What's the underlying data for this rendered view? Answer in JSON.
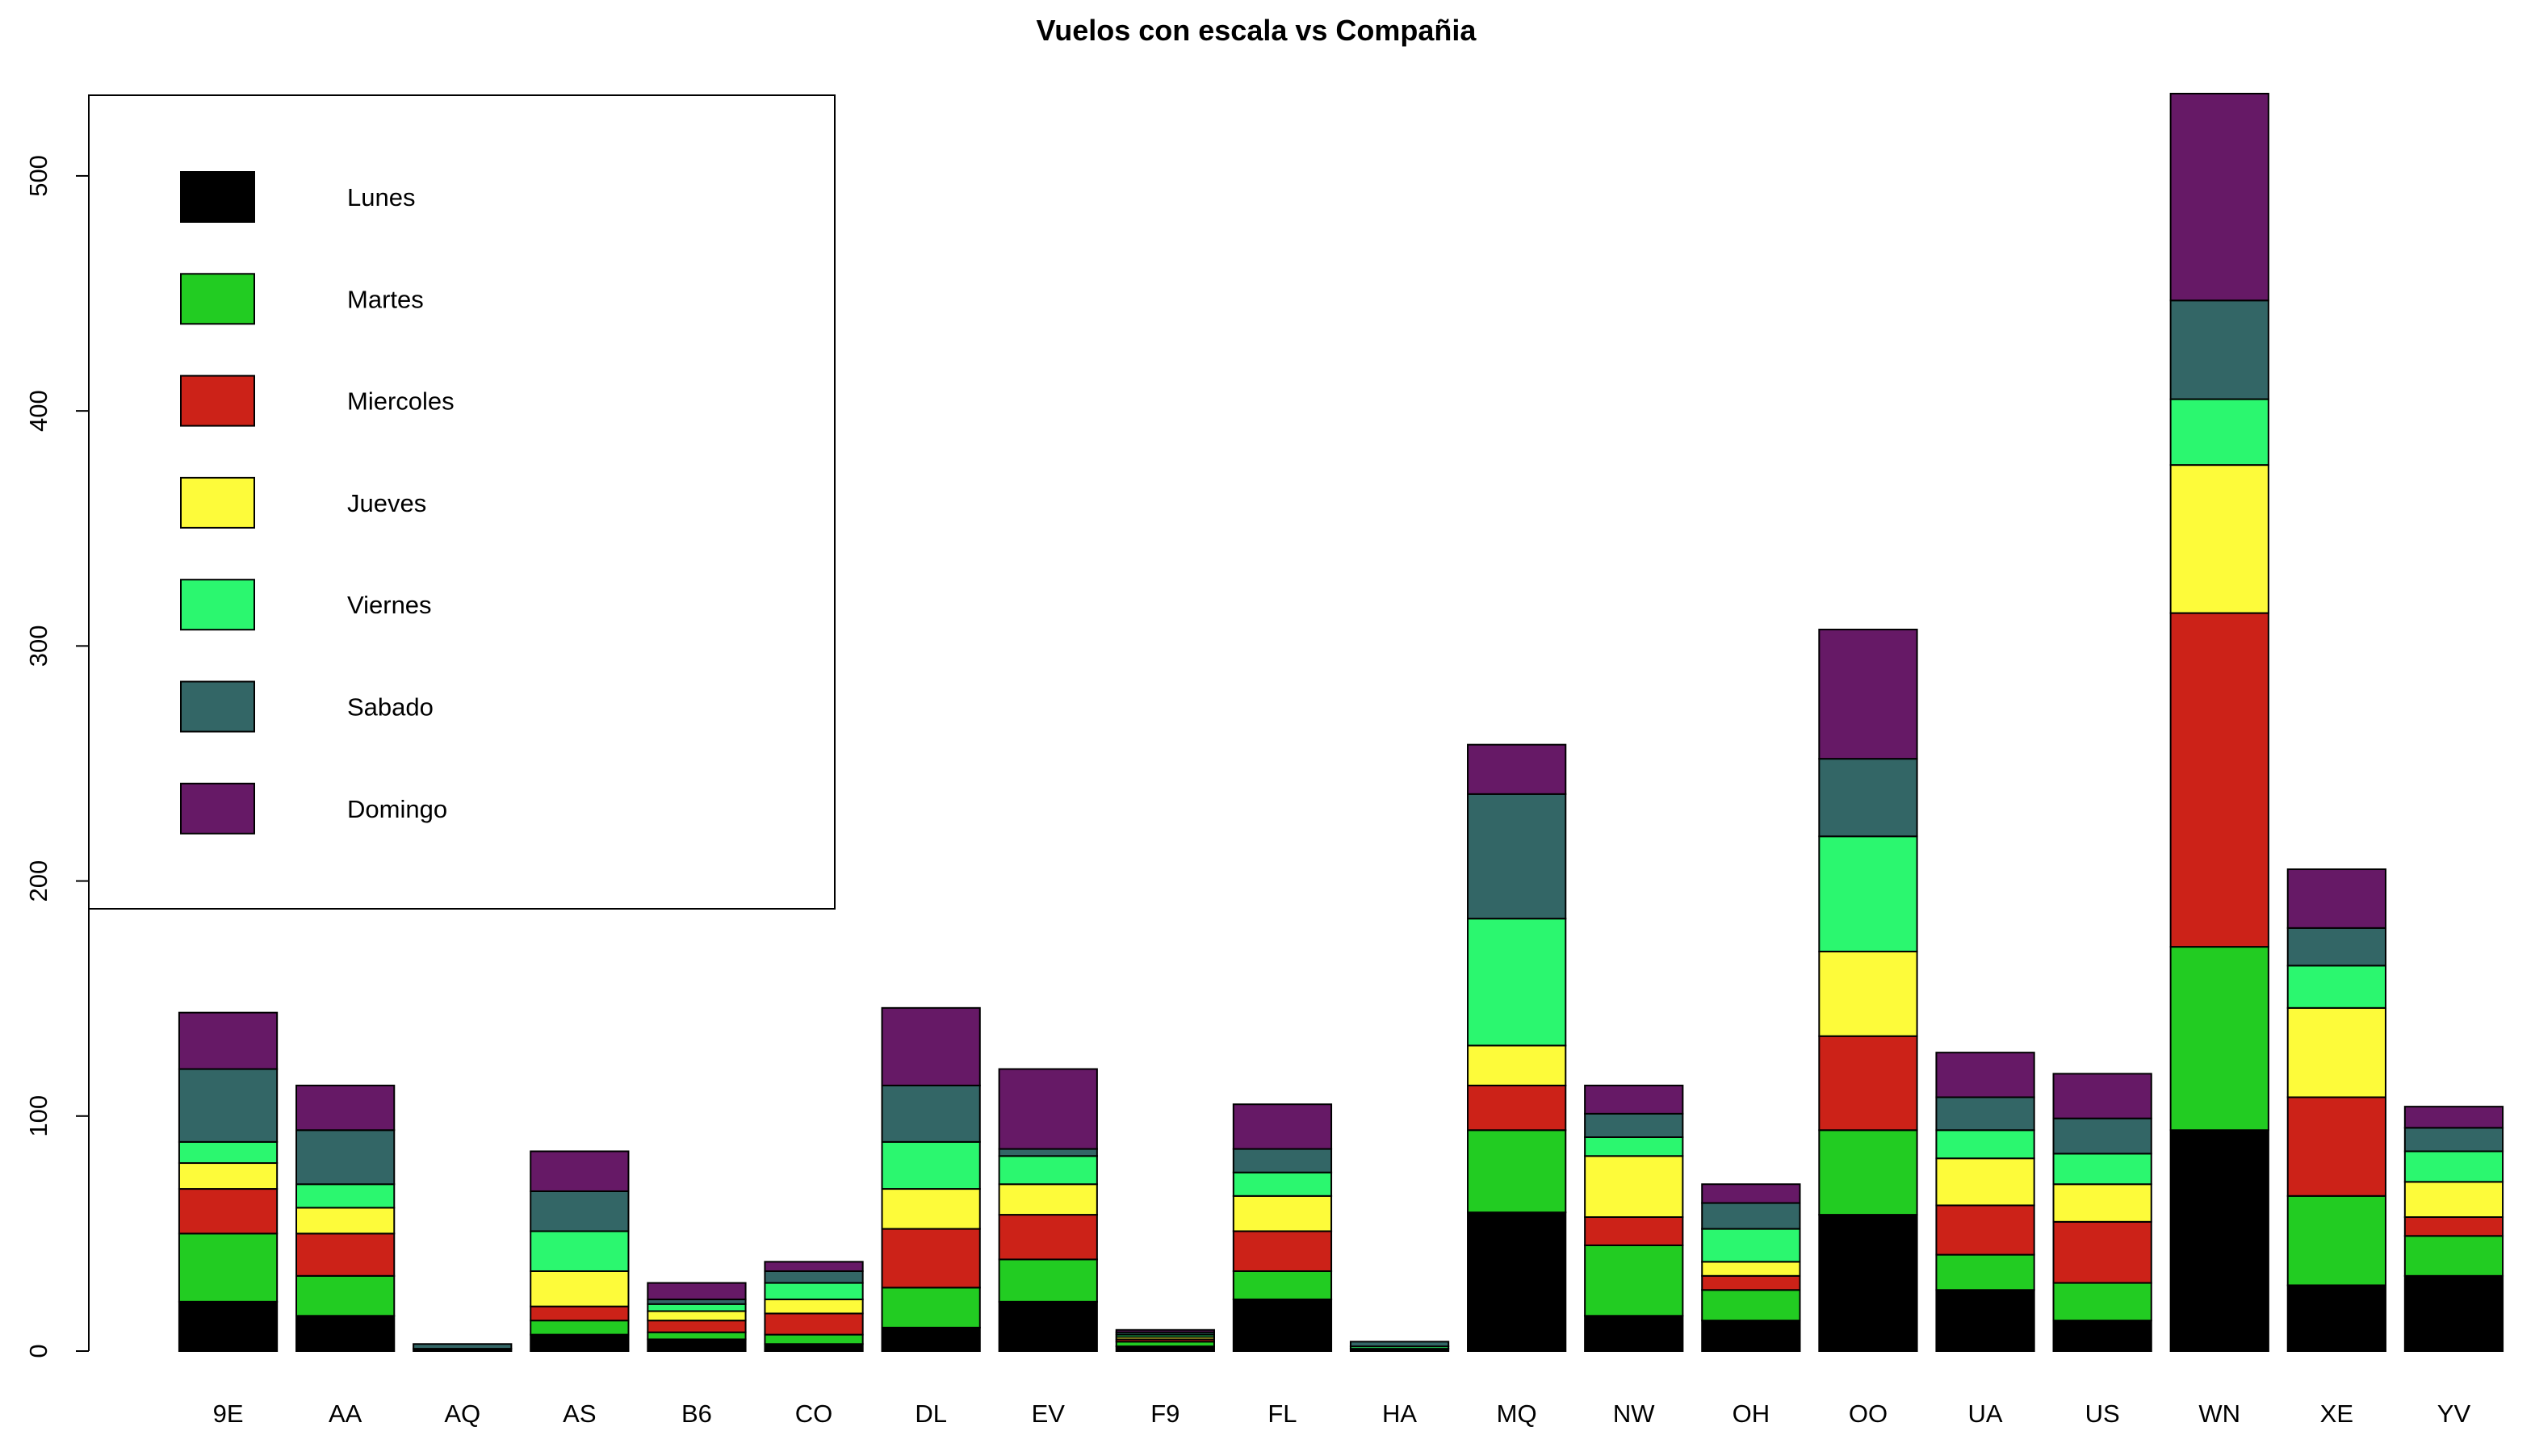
{
  "chart_data": {
    "type": "bar",
    "stacked": true,
    "title": "Vuelos con escala vs Compañia",
    "xlabel": "",
    "ylabel": "",
    "ylim": [
      0,
      535
    ],
    "yticks": [
      0,
      100,
      200,
      300,
      400,
      500
    ],
    "legend_position": "top-left",
    "categories": [
      "9E",
      "AA",
      "AQ",
      "AS",
      "B6",
      "CO",
      "DL",
      "EV",
      "F9",
      "FL",
      "HA",
      "MQ",
      "NW",
      "OH",
      "OO",
      "UA",
      "US",
      "WN",
      "XE",
      "YV"
    ],
    "series": [
      {
        "name": "Lunes",
        "color": "#000000",
        "values": [
          21,
          15,
          1,
          7,
          5,
          3,
          10,
          21,
          2,
          22,
          1,
          59,
          15,
          13,
          58,
          26,
          13,
          94,
          28,
          32
        ]
      },
      {
        "name": "Martes",
        "color": "#22cc22",
        "values": [
          29,
          17,
          0,
          6,
          3,
          4,
          17,
          18,
          2,
          12,
          0,
          35,
          30,
          13,
          36,
          15,
          16,
          78,
          38,
          17
        ]
      },
      {
        "name": "Miercoles",
        "color": "#cc2218",
        "values": [
          19,
          18,
          0,
          6,
          5,
          9,
          25,
          19,
          1,
          17,
          0,
          19,
          12,
          6,
          40,
          21,
          26,
          142,
          42,
          8
        ]
      },
      {
        "name": "Jueves",
        "color": "#fdfb3a",
        "values": [
          11,
          11,
          0,
          15,
          4,
          6,
          17,
          13,
          1,
          15,
          0,
          17,
          26,
          6,
          36,
          20,
          16,
          63,
          38,
          15
        ]
      },
      {
        "name": "Viernes",
        "color": "#2bf76f",
        "values": [
          9,
          10,
          0,
          17,
          3,
          7,
          20,
          12,
          1,
          10,
          1,
          54,
          8,
          14,
          49,
          12,
          13,
          28,
          18,
          13
        ]
      },
      {
        "name": "Sabado",
        "color": "#336666",
        "values": [
          31,
          23,
          2,
          17,
          2,
          5,
          24,
          3,
          1,
          10,
          2,
          53,
          10,
          11,
          33,
          14,
          15,
          42,
          16,
          10
        ]
      },
      {
        "name": "Domingo",
        "color": "#661966",
        "values": [
          24,
          19,
          0,
          17,
          7,
          4,
          33,
          34,
          1,
          19,
          0,
          21,
          12,
          8,
          55,
          19,
          19,
          88,
          25,
          9
        ]
      }
    ]
  }
}
